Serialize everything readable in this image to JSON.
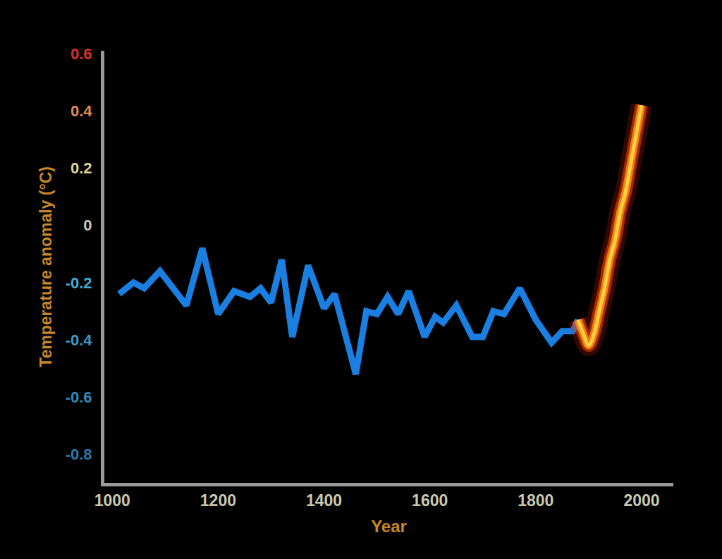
{
  "chart_data": {
    "type": "line",
    "x_label": "Year",
    "y_label": "Temperature anomaly (°C)",
    "x": [
      1013,
      1040,
      1060,
      1090,
      1140,
      1170,
      1200,
      1230,
      1260,
      1280,
      1300,
      1320,
      1340,
      1370,
      1400,
      1420,
      1460,
      1480,
      1500,
      1520,
      1540,
      1560,
      1590,
      1610,
      1625,
      1650,
      1680,
      1700,
      1720,
      1740,
      1770,
      1800,
      1830,
      1850,
      1870,
      1880,
      1890,
      1900,
      1910,
      1920,
      1930,
      1940,
      1950,
      1960,
      1970,
      1980,
      1990,
      2000
    ],
    "series": [
      {
        "color": "#1a7fe0",
        "values": [
          -0.24,
          -0.2,
          -0.22,
          -0.16,
          -0.28,
          -0.08,
          -0.31,
          -0.23,
          -0.25,
          -0.22,
          -0.27,
          -0.12,
          -0.39,
          -0.14,
          -0.29,
          -0.24,
          -0.52,
          -0.3,
          -0.31,
          -0.25,
          -0.31,
          -0.23,
          -0.39,
          -0.32,
          -0.34,
          -0.28,
          -0.39,
          -0.39,
          -0.3,
          -0.31,
          -0.22,
          -0.33,
          -0.41,
          -0.37,
          -0.37,
          -0.33,
          null,
          null,
          null,
          null,
          null,
          null,
          null,
          null,
          null,
          null,
          null,
          null
        ]
      },
      {
        "color": "#ffd040",
        "line_style": "fire",
        "values": [
          null,
          null,
          null,
          null,
          null,
          null,
          null,
          null,
          null,
          null,
          null,
          null,
          null,
          null,
          null,
          null,
          null,
          null,
          null,
          null,
          null,
          null,
          null,
          null,
          null,
          null,
          null,
          null,
          null,
          null,
          null,
          null,
          null,
          null,
          null,
          -0.33,
          -0.38,
          -0.42,
          -0.38,
          -0.3,
          -0.22,
          -0.12,
          -0.05,
          0.05,
          0.12,
          0.22,
          0.32,
          0.42
        ]
      }
    ],
    "xlim": [
      985,
      2060
    ],
    "ylim": [
      -0.9,
      0.61
    ],
    "xticks": [
      1000,
      1200,
      1400,
      1600,
      1800,
      2000
    ],
    "yticks": [
      -0.8,
      -0.6,
      -0.4,
      -0.2,
      0,
      0.2,
      0.4,
      0.6
    ],
    "grid": false
  }
}
